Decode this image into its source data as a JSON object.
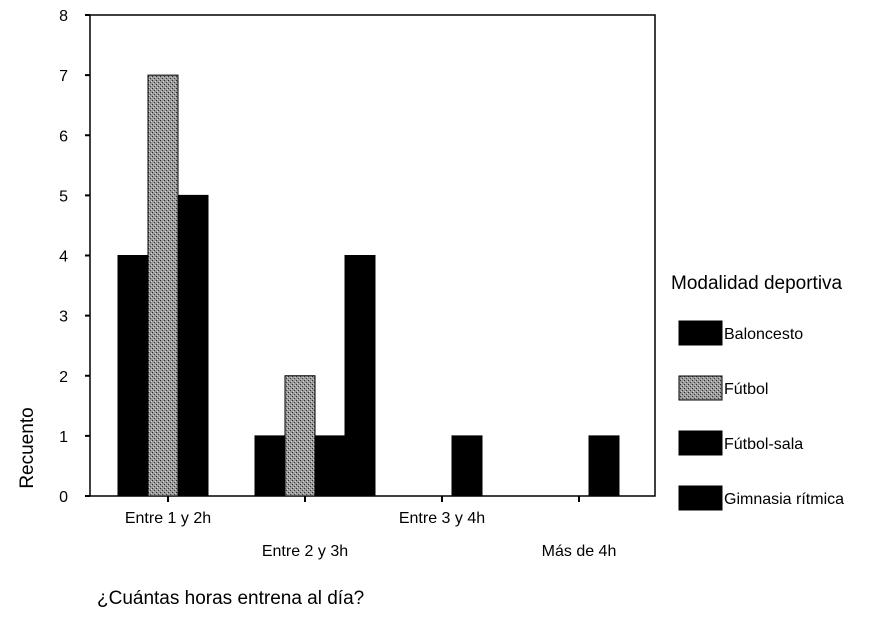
{
  "chart_data": {
    "type": "bar",
    "title": "",
    "xlabel": "¿Cuántas horas entrena al día?",
    "ylabel": "Recuento",
    "ylim": [
      0,
      8
    ],
    "yticks": [
      "0",
      "1",
      "2",
      "3",
      "4",
      "5",
      "6",
      "7",
      "8"
    ],
    "categories": [
      "Entre 1 y 2h",
      "Entre 2 y 3h",
      "Entre 3 y 4h",
      "Más de 4h"
    ],
    "legend_title": "Modalidad deportiva",
    "legend_position": "right",
    "grid": false,
    "series": [
      {
        "name": "Baloncesto",
        "color": "#000000",
        "pattern": "solid",
        "values": [
          4,
          1,
          0,
          0
        ]
      },
      {
        "name": "Fútbol",
        "color": "#8c8c8c",
        "pattern": "stipple",
        "values": [
          7,
          2,
          0,
          0
        ]
      },
      {
        "name": "Fútbol-sala",
        "color": "#000000",
        "pattern": "solid",
        "values": [
          5,
          1,
          1,
          1
        ]
      },
      {
        "name": "Gimnasia rítmica",
        "color": "#000000",
        "pattern": "solid",
        "values": [
          0,
          4,
          0,
          0
        ]
      }
    ]
  }
}
